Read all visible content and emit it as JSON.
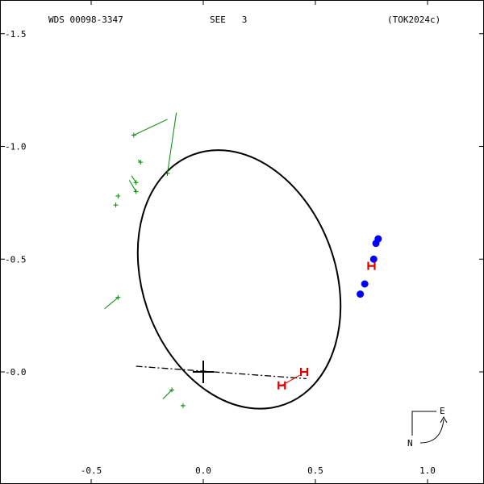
{
  "header": {
    "star_id": "WDS 00098-3347",
    "system": "SEE   3",
    "reference": "(TOK2024c)"
  },
  "compass": {
    "east": "E",
    "north": "N"
  },
  "colors": {
    "axes": "#000000",
    "orbit": "#000000",
    "observation_old": "#008800",
    "speckle": "#0000ff",
    "hipparcos": "#dd0000"
  },
  "chart_data": {
    "type": "scatter",
    "title": "",
    "xlabel": "",
    "ylabel": "",
    "xlim": [
      -0.9,
      1.25
    ],
    "ylim": [
      -0.3,
      1.6
    ],
    "y_inverted": true,
    "x_ticks": [
      {
        "value": -0.5,
        "label": "-0.5"
      },
      {
        "value": 0.0,
        "label": "0.0"
      },
      {
        "value": 0.5,
        "label": "0.5"
      },
      {
        "value": 1.0,
        "label": "1.0"
      }
    ],
    "y_ticks": [
      {
        "value": 1.5,
        "label": "-1.5"
      },
      {
        "value": 1.0,
        "label": "-1.0"
      },
      {
        "value": 0.5,
        "label": "-0.5"
      },
      {
        "value": 0.0,
        "label": "-0.0"
      }
    ],
    "primary_star": {
      "x": 0.0,
      "y": 0.0
    },
    "orbit": {
      "center": [
        0.16,
        0.41
      ],
      "semi_axes": [
        0.43,
        0.59
      ],
      "rotation_deg": -20
    },
    "line_of_nodes": {
      "x": [
        -0.3,
        0.46
      ],
      "y": [
        0.025,
        -0.03
      ]
    },
    "series": [
      {
        "marker": "plus",
        "points": [
          {
            "x": -0.31,
            "y": 1.05,
            "ox": -0.16,
            "oy": 1.12
          },
          {
            "x": -0.16,
            "y": 0.88,
            "ox": -0.12,
            "oy": 1.15
          },
          {
            "x": -0.28,
            "y": 0.93,
            "ox": -0.29,
            "oy": 0.94
          },
          {
            "x": -0.3,
            "y": 0.84,
            "ox": -0.32,
            "oy": 0.87
          },
          {
            "x": -0.3,
            "y": 0.8,
            "ox": -0.33,
            "oy": 0.85
          },
          {
            "x": -0.38,
            "y": 0.78,
            "ox": -0.38,
            "oy": 0.78
          },
          {
            "x": -0.39,
            "y": 0.74,
            "ox": -0.39,
            "oy": 0.74
          },
          {
            "x": -0.38,
            "y": 0.33,
            "ox": -0.44,
            "oy": 0.28
          },
          {
            "x": -0.14,
            "y": -0.08,
            "ox": -0.18,
            "oy": -0.12
          },
          {
            "x": -0.09,
            "y": -0.15,
            "ox": -0.1,
            "oy": -0.15
          }
        ]
      },
      {
        "marker": "filled-circle",
        "points": [
          {
            "x": 0.78,
            "y": 0.59
          },
          {
            "x": 0.77,
            "y": 0.57
          },
          {
            "x": 0.76,
            "y": 0.5
          },
          {
            "x": 0.72,
            "y": 0.39
          },
          {
            "x": 0.7,
            "y": 0.345
          }
        ]
      },
      {
        "marker": "H",
        "points": [
          {
            "x": 0.75,
            "y": 0.47
          },
          {
            "x": 0.45,
            "y": 0.0,
            "ox": 0.45,
            "oy": 0.0
          },
          {
            "x": 0.35,
            "y": -0.06,
            "ox": 0.43,
            "oy": -0.015
          }
        ]
      }
    ]
  }
}
